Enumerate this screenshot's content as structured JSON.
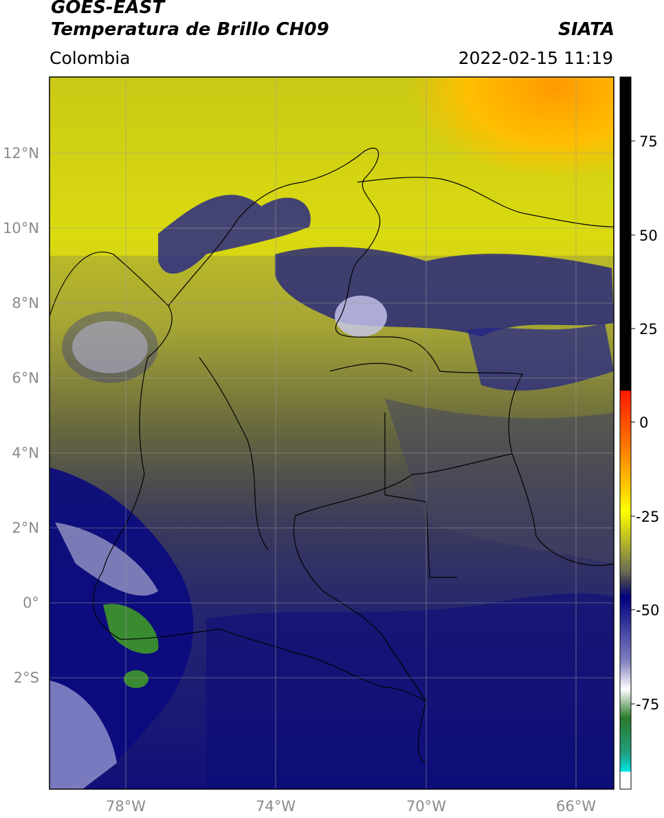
{
  "header": {
    "satellite": "GOES-EAST",
    "product": "Temperatura de Brillo CH09",
    "agency": "SIATA",
    "region": "Colombia",
    "datetime": "2022-02-15 11:19"
  },
  "map": {
    "lat_ticks": [
      "12°N",
      "10°N",
      "8°N",
      "6°N",
      "4°N",
      "2°N",
      "0°",
      "2°S"
    ],
    "lon_ticks": [
      "78°W",
      "74°W",
      "70°W",
      "66°W"
    ],
    "gridlines": true
  },
  "colorbar": {
    "ticks": [
      "75",
      "50",
      "25",
      "0",
      "-25",
      "-50",
      "-75"
    ],
    "range": [
      -95,
      90
    ],
    "colors": {
      "black": "#000000",
      "red": "#ff1a00",
      "orange": "#ff9a00",
      "yellow": "#ffff00",
      "olive": "#8a8a2a",
      "gray": "#4a4a55",
      "navy": "#000080",
      "white": "#ffffff",
      "green": "#2a8a2a",
      "cyan": "#00e5e5"
    }
  }
}
